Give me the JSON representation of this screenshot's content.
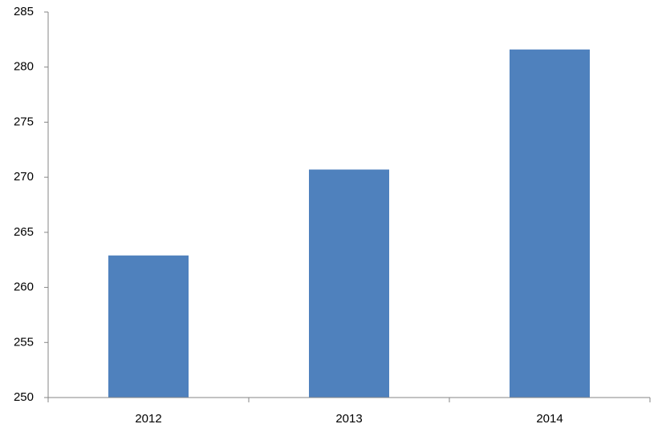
{
  "chart_data": {
    "type": "bar",
    "categories": [
      "2012",
      "2013",
      "2014"
    ],
    "values": [
      262.9,
      270.7,
      281.6
    ],
    "color": "#4f81bd",
    "ylim": [
      250,
      285
    ],
    "yticks": [
      250,
      255,
      260,
      265,
      270,
      275,
      280,
      285
    ],
    "grid": false
  }
}
